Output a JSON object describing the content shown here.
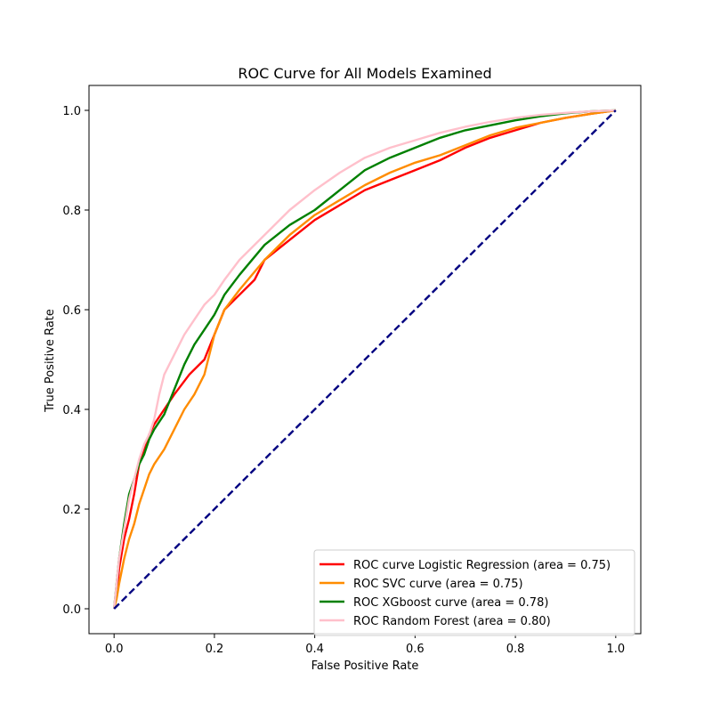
{
  "chart_data": {
    "type": "line",
    "title": "ROC Curve for All Models Examined",
    "xlabel": "False Positive Rate",
    "ylabel": "True Positive Rate",
    "xlim": [
      -0.05,
      1.05
    ],
    "ylim": [
      -0.05,
      1.05
    ],
    "xticks": [
      "0.0",
      "0.2",
      "0.4",
      "0.6",
      "0.8",
      "1.0"
    ],
    "yticks": [
      "0.0",
      "0.2",
      "0.4",
      "0.6",
      "0.8",
      "1.0"
    ],
    "grid": false,
    "legend_position": "lower-right",
    "series": [
      {
        "name": "ROC curve Logistic Regression (area = 0.75)",
        "color": "#ff0000",
        "x": [
          0.0,
          0.005,
          0.01,
          0.02,
          0.03,
          0.04,
          0.05,
          0.06,
          0.07,
          0.08,
          0.1,
          0.12,
          0.15,
          0.18,
          0.2,
          0.22,
          0.25,
          0.28,
          0.3,
          0.35,
          0.4,
          0.45,
          0.5,
          0.55,
          0.6,
          0.65,
          0.7,
          0.75,
          0.8,
          0.85,
          0.9,
          0.95,
          1.0
        ],
        "y": [
          0.0,
          0.03,
          0.08,
          0.14,
          0.18,
          0.23,
          0.29,
          0.32,
          0.35,
          0.37,
          0.4,
          0.43,
          0.47,
          0.5,
          0.55,
          0.6,
          0.63,
          0.66,
          0.7,
          0.74,
          0.78,
          0.81,
          0.84,
          0.86,
          0.88,
          0.9,
          0.925,
          0.945,
          0.96,
          0.975,
          0.985,
          0.993,
          1.0
        ]
      },
      {
        "name": "ROC SVC curve (area = 0.75)",
        "color": "#ff8c00",
        "x": [
          0.0,
          0.005,
          0.01,
          0.02,
          0.03,
          0.04,
          0.05,
          0.06,
          0.07,
          0.08,
          0.1,
          0.12,
          0.14,
          0.16,
          0.18,
          0.2,
          0.22,
          0.25,
          0.3,
          0.35,
          0.4,
          0.45,
          0.5,
          0.55,
          0.6,
          0.65,
          0.7,
          0.75,
          0.8,
          0.85,
          0.9,
          0.95,
          1.0
        ],
        "y": [
          0.0,
          0.02,
          0.05,
          0.1,
          0.14,
          0.17,
          0.21,
          0.24,
          0.27,
          0.29,
          0.32,
          0.36,
          0.4,
          0.43,
          0.47,
          0.55,
          0.6,
          0.64,
          0.7,
          0.75,
          0.79,
          0.82,
          0.85,
          0.875,
          0.895,
          0.91,
          0.93,
          0.95,
          0.965,
          0.975,
          0.985,
          0.993,
          1.0
        ]
      },
      {
        "name": "ROC XGboost curve (area = 0.78)",
        "color": "#008000",
        "x": [
          0.0,
          0.005,
          0.01,
          0.02,
          0.03,
          0.04,
          0.05,
          0.06,
          0.07,
          0.08,
          0.1,
          0.12,
          0.14,
          0.16,
          0.18,
          0.2,
          0.22,
          0.25,
          0.3,
          0.35,
          0.4,
          0.45,
          0.5,
          0.55,
          0.6,
          0.65,
          0.7,
          0.75,
          0.8,
          0.85,
          0.9,
          0.95,
          1.0
        ],
        "y": [
          0.0,
          0.05,
          0.1,
          0.17,
          0.23,
          0.26,
          0.29,
          0.31,
          0.34,
          0.36,
          0.39,
          0.44,
          0.49,
          0.53,
          0.56,
          0.59,
          0.63,
          0.67,
          0.73,
          0.77,
          0.8,
          0.84,
          0.88,
          0.905,
          0.925,
          0.945,
          0.96,
          0.97,
          0.98,
          0.988,
          0.994,
          0.998,
          1.0
        ]
      },
      {
        "name": "ROC Random Forest (area = 0.80)",
        "color": "#ffc0cb",
        "x": [
          0.0,
          0.005,
          0.01,
          0.02,
          0.03,
          0.04,
          0.05,
          0.06,
          0.07,
          0.08,
          0.09,
          0.1,
          0.12,
          0.14,
          0.16,
          0.18,
          0.2,
          0.22,
          0.25,
          0.3,
          0.35,
          0.4,
          0.45,
          0.5,
          0.55,
          0.6,
          0.65,
          0.7,
          0.75,
          0.8,
          0.85,
          0.9,
          0.95,
          1.0
        ],
        "y": [
          0.0,
          0.05,
          0.1,
          0.16,
          0.22,
          0.26,
          0.3,
          0.33,
          0.35,
          0.38,
          0.43,
          0.47,
          0.51,
          0.55,
          0.58,
          0.61,
          0.63,
          0.66,
          0.7,
          0.75,
          0.8,
          0.84,
          0.875,
          0.905,
          0.925,
          0.94,
          0.955,
          0.967,
          0.977,
          0.985,
          0.991,
          0.995,
          0.998,
          1.0
        ]
      },
      {
        "color": "#000080",
        "dashed": true,
        "x": [
          0.0,
          1.0
        ],
        "y": [
          0.0,
          1.0
        ]
      }
    ]
  }
}
